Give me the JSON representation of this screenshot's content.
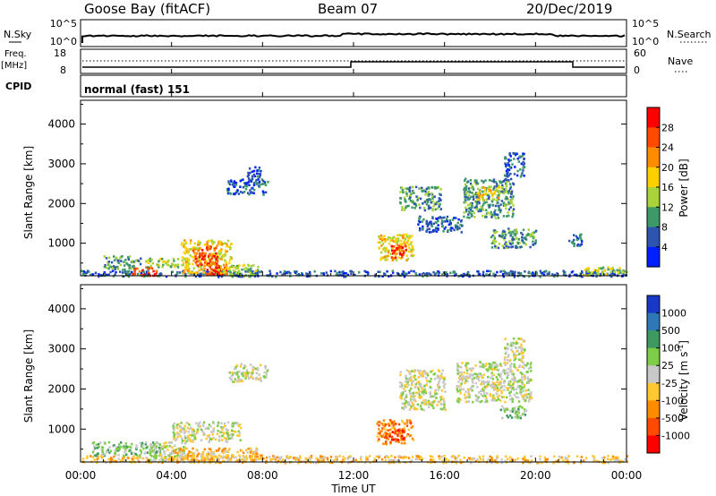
{
  "header": {
    "station": "Goose Bay (fitACF)",
    "beam": "Beam 07",
    "date": "20/Dec/2019"
  },
  "panel_nsky": {
    "label": "N.Sky",
    "right_label": "N.Search",
    "ticks_left": [
      "10^5",
      "10^0"
    ],
    "ticks_right": [
      "10^5",
      "10^0"
    ]
  },
  "panel_freq": {
    "label_line1": "Freq.",
    "label_line2": "[MHz]",
    "ticks_left": [
      "18",
      "8"
    ],
    "ticks_right": [
      "60",
      "0"
    ],
    "right_label": "Nave"
  },
  "panel_cpid": {
    "label": "CPID",
    "mode": "normal (fast) 151"
  },
  "chart_data": [
    {
      "type": "heatmap",
      "name": "power",
      "ylabel": "Slant Range [km]",
      "ylim": [
        180,
        4600
      ],
      "yticks": [
        1000,
        2000,
        3000,
        4000
      ],
      "xlim": [
        "00:00",
        "24:00"
      ],
      "colorbar": {
        "label": "Power [dB]",
        "ticks": [
          "28",
          "24",
          "20",
          "16",
          "12",
          "8",
          "4"
        ],
        "colors": [
          "#ff0000",
          "#ff4a00",
          "#ff8c00",
          "#ffd000",
          "#a8d43a",
          "#3d9968",
          "#2d55b0",
          "#0020ff"
        ]
      },
      "regions": [
        {
          "t0": 0.0,
          "t1": 24.0,
          "r0": 180,
          "r1": 330,
          "level": 6
        },
        {
          "t0": 1.0,
          "t1": 2.6,
          "r0": 350,
          "r1": 700,
          "level": 5
        },
        {
          "t0": 2.2,
          "t1": 3.3,
          "r0": 200,
          "r1": 420,
          "level": 1
        },
        {
          "t0": 2.8,
          "t1": 4.8,
          "r0": 420,
          "r1": 640,
          "level": 4
        },
        {
          "t0": 4.4,
          "t1": 6.6,
          "r0": 250,
          "r1": 1100,
          "level": 3
        },
        {
          "t0": 4.9,
          "t1": 6.0,
          "r0": 450,
          "r1": 950,
          "level": 1
        },
        {
          "t0": 5.4,
          "t1": 6.4,
          "r0": 220,
          "r1": 460,
          "level": 0
        },
        {
          "t0": 6.0,
          "t1": 7.8,
          "r0": 200,
          "r1": 480,
          "level": 4
        },
        {
          "t0": 6.4,
          "t1": 8.2,
          "r0": 2250,
          "r1": 2650,
          "level": 6
        },
        {
          "t0": 7.3,
          "t1": 7.9,
          "r0": 2600,
          "r1": 2950,
          "level": 6
        },
        {
          "t0": 13.0,
          "t1": 14.6,
          "r0": 600,
          "r1": 1250,
          "level": 3
        },
        {
          "t0": 13.6,
          "t1": 14.3,
          "r0": 620,
          "r1": 1000,
          "level": 1
        },
        {
          "t0": 14.0,
          "t1": 15.8,
          "r0": 1850,
          "r1": 2450,
          "level": 5
        },
        {
          "t0": 14.8,
          "t1": 16.8,
          "r0": 1300,
          "r1": 1700,
          "level": 6
        },
        {
          "t0": 16.8,
          "t1": 19.0,
          "r0": 1650,
          "r1": 2650,
          "level": 5
        },
        {
          "t0": 17.4,
          "t1": 18.4,
          "r0": 2100,
          "r1": 2450,
          "level": 3
        },
        {
          "t0": 18.0,
          "t1": 20.0,
          "r0": 900,
          "r1": 1400,
          "level": 5
        },
        {
          "t0": 18.6,
          "t1": 19.5,
          "r0": 2700,
          "r1": 3300,
          "level": 6
        },
        {
          "t0": 21.4,
          "t1": 22.0,
          "r0": 950,
          "r1": 1250,
          "level": 6
        },
        {
          "t0": 22.0,
          "t1": 24.0,
          "r0": 200,
          "r1": 420,
          "level": 4
        }
      ]
    },
    {
      "type": "heatmap",
      "name": "velocity",
      "ylabel": "Slant Range [km]",
      "ylim": [
        180,
        4600
      ],
      "yticks": [
        1000,
        2000,
        3000,
        4000
      ],
      "xlim": [
        "00:00",
        "24:00"
      ],
      "xlabel": "Time UT",
      "xticks": [
        "00:00",
        "04:00",
        "08:00",
        "12:00",
        "16:00",
        "20:00",
        "00:00"
      ],
      "colorbar": {
        "label": "Velocity [m s",
        "label_sup": "-1",
        "label_end": "]",
        "ticks": [
          "1000",
          "500",
          "100",
          "25",
          "-25",
          "-100",
          "-500",
          "-1000"
        ],
        "colors": [
          "#1838c8",
          "#2f78b8",
          "#3d9960",
          "#7dcd48",
          "#c8c8c8",
          "#ffc832",
          "#ff8c00",
          "#ff4a00",
          "#ff0000"
        ]
      },
      "regions": [
        {
          "t0": 0.0,
          "t1": 24.0,
          "r0": 180,
          "r1": 360,
          "level": 5
        },
        {
          "t0": 0.5,
          "t1": 3.5,
          "r0": 360,
          "r1": 700,
          "level": 3
        },
        {
          "t0": 3.0,
          "t1": 4.6,
          "r0": 250,
          "r1": 700,
          "level": 4
        },
        {
          "t0": 4.0,
          "t1": 7.0,
          "r0": 700,
          "r1": 1200,
          "level": 4
        },
        {
          "t0": 4.0,
          "t1": 8.0,
          "r0": 250,
          "r1": 550,
          "level": 5
        },
        {
          "t0": 6.5,
          "t1": 8.2,
          "r0": 2200,
          "r1": 2650,
          "level": 4
        },
        {
          "t0": 13.0,
          "t1": 14.6,
          "r0": 650,
          "r1": 1250,
          "level": 6
        },
        {
          "t0": 13.4,
          "t1": 14.2,
          "r0": 750,
          "r1": 1000,
          "level": 7
        },
        {
          "t0": 14.0,
          "t1": 16.0,
          "r0": 1500,
          "r1": 2500,
          "level": 4
        },
        {
          "t0": 16.5,
          "t1": 19.8,
          "r0": 1700,
          "r1": 2700,
          "level": 4
        },
        {
          "t0": 18.4,
          "t1": 19.6,
          "r0": 1300,
          "r1": 1600,
          "level": 3
        },
        {
          "t0": 18.6,
          "t1": 19.5,
          "r0": 2700,
          "r1": 3300,
          "level": 4
        }
      ]
    }
  ]
}
